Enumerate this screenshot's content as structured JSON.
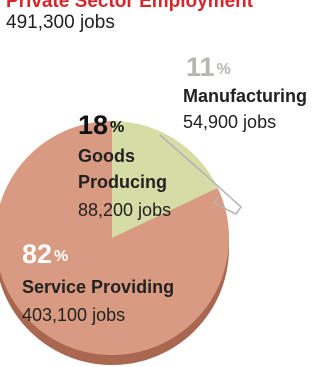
{
  "title": "Private Sector Employment",
  "subtitle": "491,300 jobs",
  "colors": {
    "title": "#d7262b",
    "service": "#d99a82",
    "service_shadow": "#a9674f",
    "goods": "#d6dca6",
    "goods_shadow": "#9fa271",
    "manufacturing": "#c7c9aa",
    "manufacturing_text": "#b5b7b0",
    "connector": "#b3b3b3",
    "text": "#222222"
  },
  "chart_data": {
    "type": "pie",
    "title": "Private Sector Employment",
    "total_label": "491,300 jobs",
    "slices": [
      {
        "name": "Service Providing",
        "percent": 82,
        "jobs": "403,100 jobs",
        "value": 403100
      },
      {
        "name": "Goods Producing",
        "percent": 18,
        "jobs": "88,200 jobs",
        "value": 88200
      }
    ],
    "breakout": {
      "name": "Manufacturing",
      "percent": 11,
      "jobs": "54,900 jobs",
      "value": 54900,
      "parent": "Goods Producing"
    }
  },
  "labels": {
    "goods_pct": "18",
    "goods_name_1": "Goods",
    "goods_name_2": "Producing",
    "goods_jobs": "88,200 jobs",
    "service_pct": "82",
    "service_name": "Service Providing",
    "service_jobs": "403,100 jobs",
    "manu_pct": "11",
    "manu_name": "Manufacturing",
    "manu_jobs": "54,900 jobs",
    "percent_sign": "%"
  }
}
